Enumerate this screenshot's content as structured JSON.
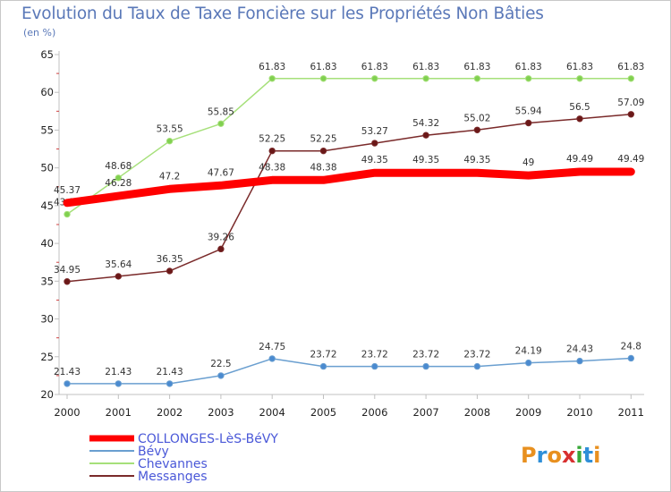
{
  "header": {
    "title": "Evolution du Taux de Taxe Foncière sur les Propriétés Non Bâties",
    "unit": "(en %)"
  },
  "logo": {
    "text": "Proxiti",
    "colors": [
      "#e8901f",
      "#2f8fd8",
      "#e8901f",
      "#d83030",
      "#3aa83a",
      "#2f8fd8",
      "#e8901f"
    ]
  },
  "chart_data": {
    "type": "line",
    "title": "Evolution du Taux de Taxe Foncière sur les Propriétés Non Bâties",
    "ylabel": "(en %)",
    "x": [
      "2000",
      "2001",
      "2002",
      "2003",
      "2004",
      "2005",
      "2006",
      "2007",
      "2008",
      "2009",
      "2010",
      "2011"
    ],
    "ylim": [
      20,
      65
    ],
    "yticks": [
      20,
      25,
      30,
      35,
      40,
      45,
      50,
      55,
      60,
      65
    ],
    "grid": false,
    "legend_position": "bottom-left",
    "series": [
      {
        "name": "COLLONGES-LèS-BéVY",
        "color": "#ff0000",
        "width": 9,
        "markers": false,
        "values": [
          45.37,
          46.28,
          47.2,
          47.67,
          48.38,
          48.38,
          49.35,
          49.35,
          49.35,
          49,
          49.49,
          49.49
        ],
        "labels": [
          "45.37",
          "46.28",
          "47.2",
          "47.67",
          "48.38",
          "48.38",
          "49.35",
          "49.35",
          "49.35",
          "49",
          "49.49",
          "49.49"
        ]
      },
      {
        "name": "Bévy",
        "color": "#6a9fd0",
        "marker_color": "#4a8ad0",
        "width": 1.5,
        "markers": true,
        "values": [
          21.43,
          21.43,
          21.43,
          22.5,
          24.75,
          23.72,
          23.72,
          23.72,
          23.72,
          24.19,
          24.43,
          24.8
        ],
        "labels": [
          "21.43",
          "21.43",
          "21.43",
          "22.5",
          "24.75",
          "23.72",
          "23.72",
          "23.72",
          "23.72",
          "24.19",
          "24.43",
          "24.8"
        ]
      },
      {
        "name": "Chevannes",
        "color": "#a6e07a",
        "marker_color": "#80d050",
        "width": 1.5,
        "markers": true,
        "values": [
          43.86,
          48.68,
          53.55,
          55.85,
          61.83,
          61.83,
          61.83,
          61.83,
          61.83,
          61.83,
          61.83,
          61.83
        ],
        "labels": [
          "43.86",
          "48.68",
          "53.55",
          "55.85",
          "61.83",
          "61.83",
          "61.83",
          "61.83",
          "61.83",
          "61.83",
          "61.83",
          "61.83"
        ]
      },
      {
        "name": "Messanges",
        "color": "#7a2a2a",
        "marker_color": "#6a1818",
        "width": 1.5,
        "markers": true,
        "values": [
          34.95,
          35.64,
          36.35,
          39.26,
          52.25,
          52.25,
          53.27,
          54.32,
          55.02,
          55.94,
          56.5,
          57.09
        ],
        "labels": [
          "34.95",
          "35.64",
          "36.35",
          "39.26",
          "52.25",
          "52.25",
          "53.27",
          "54.32",
          "55.02",
          "55.94",
          "56.5",
          "57.09"
        ]
      }
    ]
  }
}
